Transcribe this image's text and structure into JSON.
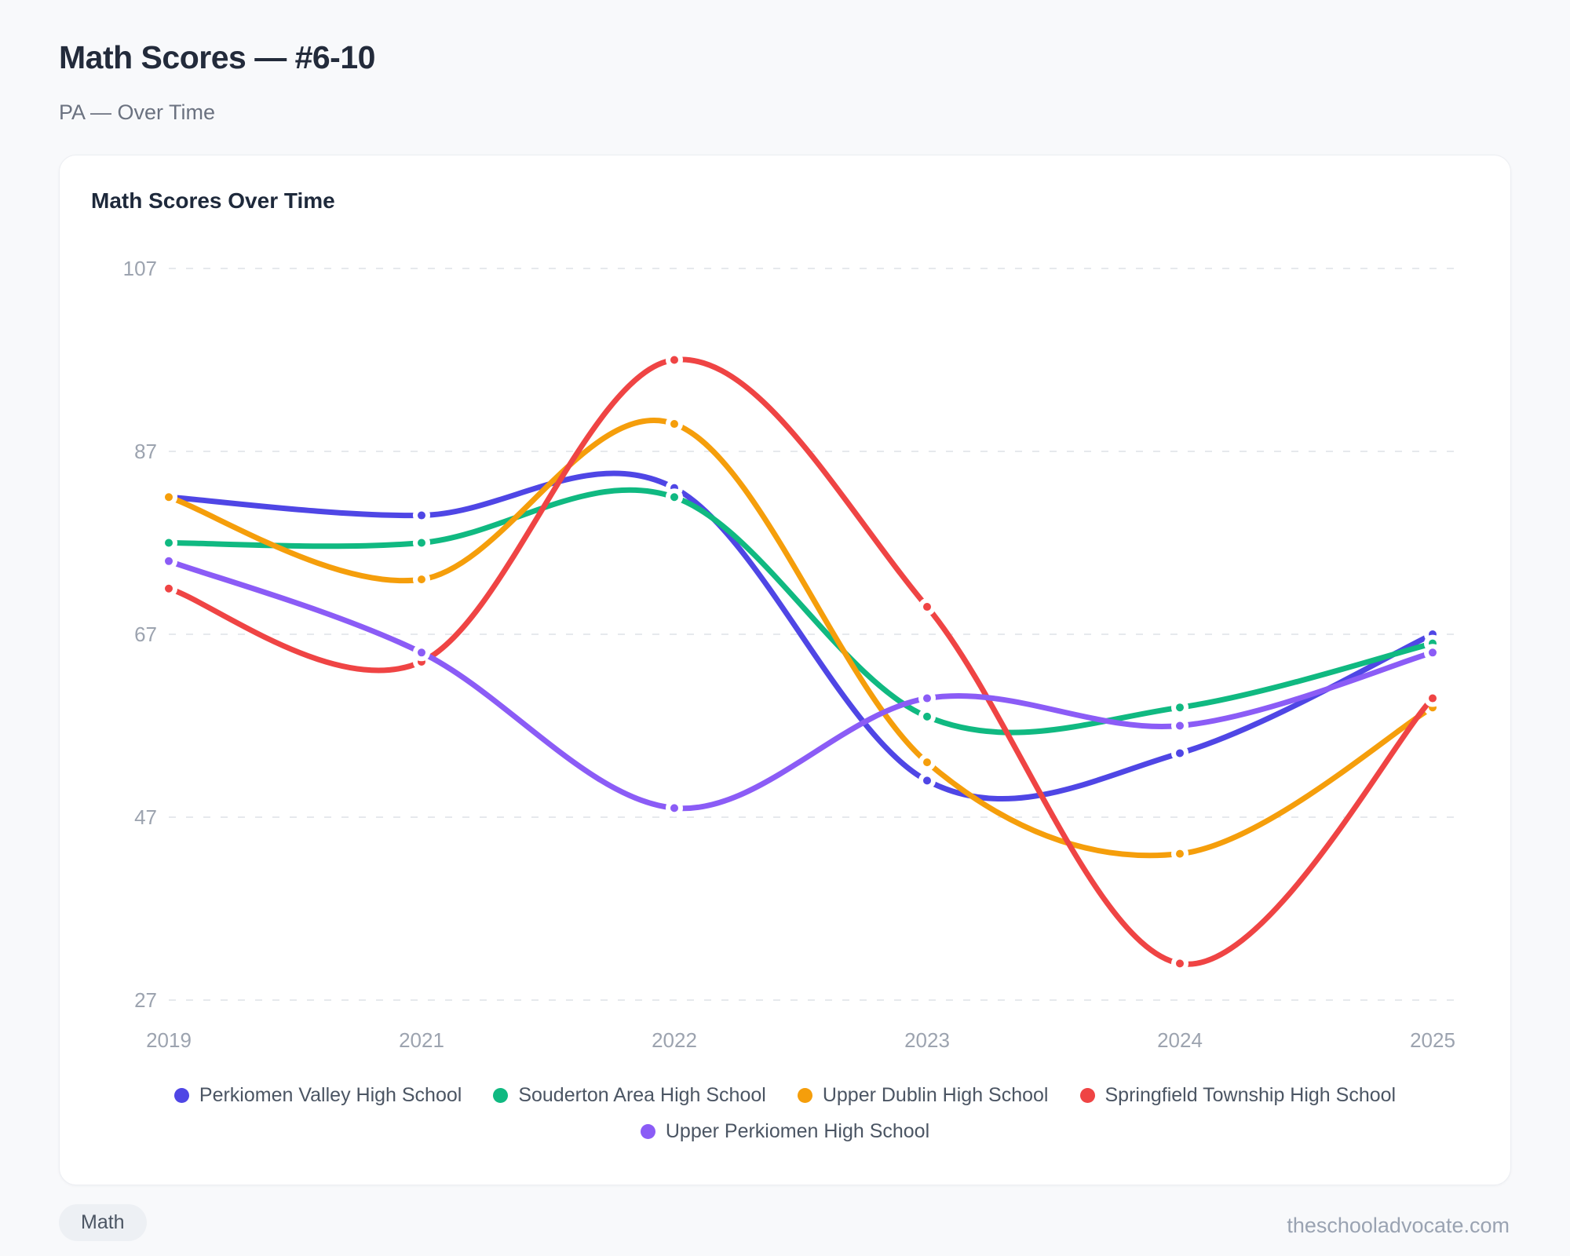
{
  "page": {
    "title": "Math Scores — #6-10",
    "subtitle": "PA — Over Time",
    "footer_tag": "Math",
    "footer_site": "theschooladvocate.com"
  },
  "chart_data": {
    "type": "line",
    "title": "Math Scores Over Time",
    "xlabel": "",
    "ylabel": "",
    "categories": [
      "2019",
      "2021",
      "2022",
      "2023",
      "2024",
      "2025"
    ],
    "y_ticks": [
      107,
      87,
      67,
      47,
      27
    ],
    "ylim": [
      27,
      107
    ],
    "grid": "horizontal-dashed",
    "legend_position": "bottom",
    "line_style": "smooth-spline-with-point-markers",
    "series": [
      {
        "name": "Perkiomen Valley High School",
        "color": "#4F46E5",
        "values": [
          82,
          80,
          83,
          51,
          54,
          67
        ]
      },
      {
        "name": "Souderton Area High School",
        "color": "#10B981",
        "values": [
          77,
          77,
          82,
          58,
          59,
          66
        ]
      },
      {
        "name": "Upper Dublin High School",
        "color": "#F59E0B",
        "values": [
          82,
          73,
          90,
          53,
          43,
          59
        ]
      },
      {
        "name": "Springfield Township High School",
        "color": "#EF4444",
        "values": [
          72,
          64,
          97,
          70,
          31,
          60
        ]
      },
      {
        "name": "Upper Perkiomen High School",
        "color": "#8B5CF6",
        "values": [
          75,
          65,
          48,
          60,
          57,
          65
        ]
      }
    ]
  }
}
